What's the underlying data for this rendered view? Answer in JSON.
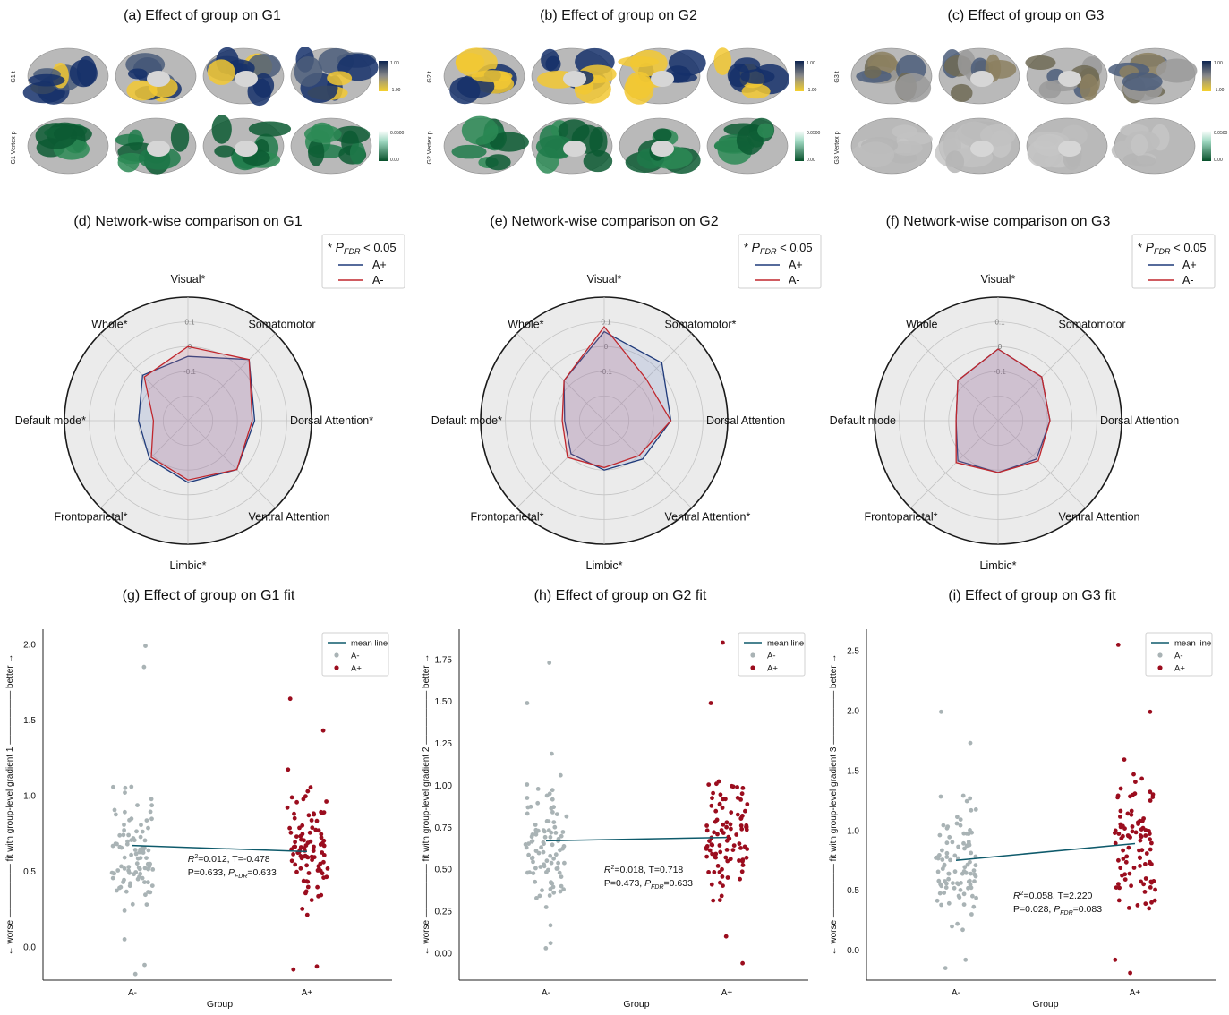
{
  "panels": {
    "a": {
      "title": "(a) Effect of group on G1",
      "row_top": "G1 t",
      "row_bottom": "G1 Vertex p",
      "cbar_top": [
        "1.00",
        "-1.00"
      ],
      "cbar_bottom": [
        "0.0500",
        "0.00"
      ]
    },
    "b": {
      "title": "(b) Effect of group on G2",
      "row_top": "G2 t",
      "row_bottom": "G2 Vertex p",
      "cbar_top": [
        "1.00",
        "-1.00"
      ],
      "cbar_bottom": [
        "0.0500",
        "0.00"
      ]
    },
    "c": {
      "title": "(c) Effect of group on G3",
      "row_top": "G3 t",
      "row_bottom": "G3 Vertex p",
      "cbar_top": [
        "1.00",
        "-1.00"
      ],
      "cbar_bottom": [
        "0.0500",
        "0.00"
      ]
    }
  },
  "colors": {
    "a_plus": "#1f3a7a",
    "a_minus": "#c0272d",
    "scatter_a_minus": "#a9b3b5",
    "scatter_a_plus": "#9b0d1e",
    "mean_line": "#0e5a6b",
    "brain_gray": "#b9b9b9",
    "brain_dark": "#15306a",
    "brain_yellow": "#f2c833",
    "brain_green": "#0c5a32"
  },
  "chart_data": [
    {
      "type": "radar",
      "title": "(d) Network-wise comparison on G1",
      "axes": [
        "Visual*",
        "Somatomotor",
        "Dorsal Attention*",
        "Ventral Attention",
        "Limbic*",
        "Frontoparietal*",
        "Default mode*",
        "Whole*"
      ],
      "rticks": [
        "0.1",
        "0",
        "-0.1"
      ],
      "rlim": [
        -0.3,
        0.2
      ],
      "legend_title_prefix": "* ",
      "legend_title_p": "P",
      "legend_title_sub": "FDR",
      "legend_title_rest": " < 0.05",
      "legend": [
        "A+",
        "A-"
      ],
      "series": [
        {
          "name": "A+",
          "values": [
            -0.04,
            0.05,
            -0.03,
            -0.02,
            -0.05,
            -0.08,
            -0.1,
            -0.04
          ]
        },
        {
          "name": "A-",
          "values": [
            0.0,
            0.05,
            -0.04,
            -0.02,
            -0.06,
            -0.09,
            -0.16,
            -0.05
          ]
        }
      ]
    },
    {
      "type": "radar",
      "title": "(e) Network-wise comparison on G2",
      "axes": [
        "Visual*",
        "Somatomotor*",
        "Dorsal Attention",
        "Ventral Attention*",
        "Limbic*",
        "Frontoparietal*",
        "Default mode*",
        "Whole*"
      ],
      "rticks": [
        "0.1",
        "0",
        "-0.1"
      ],
      "rlim": [
        -0.3,
        0.2
      ],
      "legend_title_prefix": "* ",
      "legend_title_p": "P",
      "legend_title_sub": "FDR",
      "legend_title_rest": " < 0.05",
      "legend": [
        "A+",
        "A-"
      ],
      "series": [
        {
          "name": "A+",
          "values": [
            0.06,
            0.03,
            -0.03,
            -0.08,
            -0.1,
            -0.11,
            -0.14,
            -0.07
          ]
        },
        {
          "name": "A-",
          "values": [
            0.08,
            -0.06,
            -0.03,
            -0.1,
            -0.11,
            -0.09,
            -0.13,
            -0.07
          ]
        }
      ]
    },
    {
      "type": "radar",
      "title": "(f) Network-wise comparison on G3",
      "axes": [
        "Visual*",
        "Somatomotor",
        "Dorsal Attention",
        "Ventral Attention",
        "Limbic*",
        "Frontoparietal*",
        "Default mode",
        "Whole"
      ],
      "rticks": [
        "0.1",
        "0",
        "-0.1"
      ],
      "rlim": [
        -0.3,
        0.2
      ],
      "legend_title_prefix": "* ",
      "legend_title_p": "P",
      "legend_title_sub": "FDR",
      "legend_title_rest": " < 0.05",
      "legend": [
        "A+",
        "A-"
      ],
      "series": [
        {
          "name": "A+",
          "values": [
            -0.01,
            -0.05,
            -0.09,
            -0.08,
            -0.09,
            -0.07,
            -0.13,
            -0.07
          ]
        },
        {
          "name": "A-",
          "values": [
            -0.01,
            -0.05,
            -0.09,
            -0.07,
            -0.09,
            -0.06,
            -0.13,
            -0.07
          ]
        }
      ]
    },
    {
      "type": "scatter",
      "title": "(g) Effect of group on G1 fit",
      "xlabel": "Group",
      "ylabel": "← worse —————— fit with group-level gradient 1 —————— better →",
      "categories": [
        "A-",
        "A+"
      ],
      "yticks": [
        0.0,
        0.5,
        1.0,
        1.5,
        2.0
      ],
      "ytick_labels": [
        "0.0",
        "0.5",
        "1.0",
        "1.5",
        "2.0"
      ],
      "ylim": [
        -0.22,
        2.1
      ],
      "legend": [
        "mean line",
        "A-",
        "A+"
      ],
      "mean": [
        0.67,
        0.63
      ],
      "stats_line1": "=0.012, T=-0.478",
      "stats_line2_a": "P=0.633, ",
      "stats_line2_b": "=0.633",
      "stats_xy": [
        1.45,
        0.56
      ],
      "seed": 11,
      "spread": {
        "A-": [
          0.05,
          2.0,
          0.62,
          0.38
        ],
        "A+": [
          0.05,
          1.65,
          0.63,
          0.33
        ]
      },
      "extremes": {
        "A-": [
          1.99,
          1.85,
          -0.18,
          -0.12
        ],
        "A+": [
          1.64,
          1.43,
          -0.15,
          -0.13
        ]
      }
    },
    {
      "type": "scatter",
      "title": "(h) Effect of group on G2 fit",
      "xlabel": "Group",
      "ylabel": "← worse —————— fit with group-level gradient 2 —————— better →",
      "categories": [
        "A-",
        "A+"
      ],
      "yticks": [
        0.0,
        0.25,
        0.5,
        0.75,
        1.0,
        1.25,
        1.5,
        1.75
      ],
      "ytick_labels": [
        "0.00",
        "0.25",
        "0.50",
        "0.75",
        "1.00",
        "1.25",
        "1.50",
        "1.75"
      ],
      "ylim": [
        -0.16,
        1.93
      ],
      "legend": [
        "mean line",
        "A-",
        "A+"
      ],
      "mean": [
        0.67,
        0.69
      ],
      "stats_line1": "=0.018, T=0.718",
      "stats_line2_a": "P=0.473, ",
      "stats_line2_b": "=0.633",
      "stats_xy": [
        1.45,
        0.48
      ],
      "seed": 23,
      "spread": {
        "A-": [
          0.03,
          1.5,
          0.66,
          0.33
        ],
        "A+": [
          0.08,
          1.45,
          0.7,
          0.3
        ]
      },
      "extremes": {
        "A-": [
          1.73,
          1.49,
          0.03,
          0.06
        ],
        "A+": [
          1.85,
          1.49,
          -0.06,
          0.1
        ]
      }
    },
    {
      "type": "scatter",
      "title": "(i) Effect of group on G3 fit",
      "xlabel": "Group",
      "ylabel": "← worse —————— fit with group-level gradient 3 —————— better →",
      "categories": [
        "A-",
        "A+"
      ],
      "yticks": [
        0.0,
        0.5,
        1.0,
        1.5,
        2.0,
        2.5
      ],
      "ytick_labels": [
        "0.0",
        "0.5",
        "1.0",
        "1.5",
        "2.0",
        "2.5"
      ],
      "ylim": [
        -0.25,
        2.68
      ],
      "legend": [
        "mean line",
        "A-",
        "A+"
      ],
      "mean": [
        0.75,
        0.89
      ],
      "stats_line1": "=0.058, T=2.220",
      "stats_line2_a": "P=0.028, ",
      "stats_line2_b": "=0.083",
      "stats_xy": [
        1.45,
        0.43
      ],
      "seed": 37,
      "spread": {
        "A-": [
          -0.05,
          1.75,
          0.73,
          0.43
        ],
        "A+": [
          0.05,
          1.85,
          0.88,
          0.48
        ]
      },
      "extremes": {
        "A-": [
          1.99,
          1.73,
          -0.15,
          -0.08
        ],
        "A+": [
          2.55,
          1.99,
          -0.19,
          -0.08
        ]
      }
    }
  ]
}
